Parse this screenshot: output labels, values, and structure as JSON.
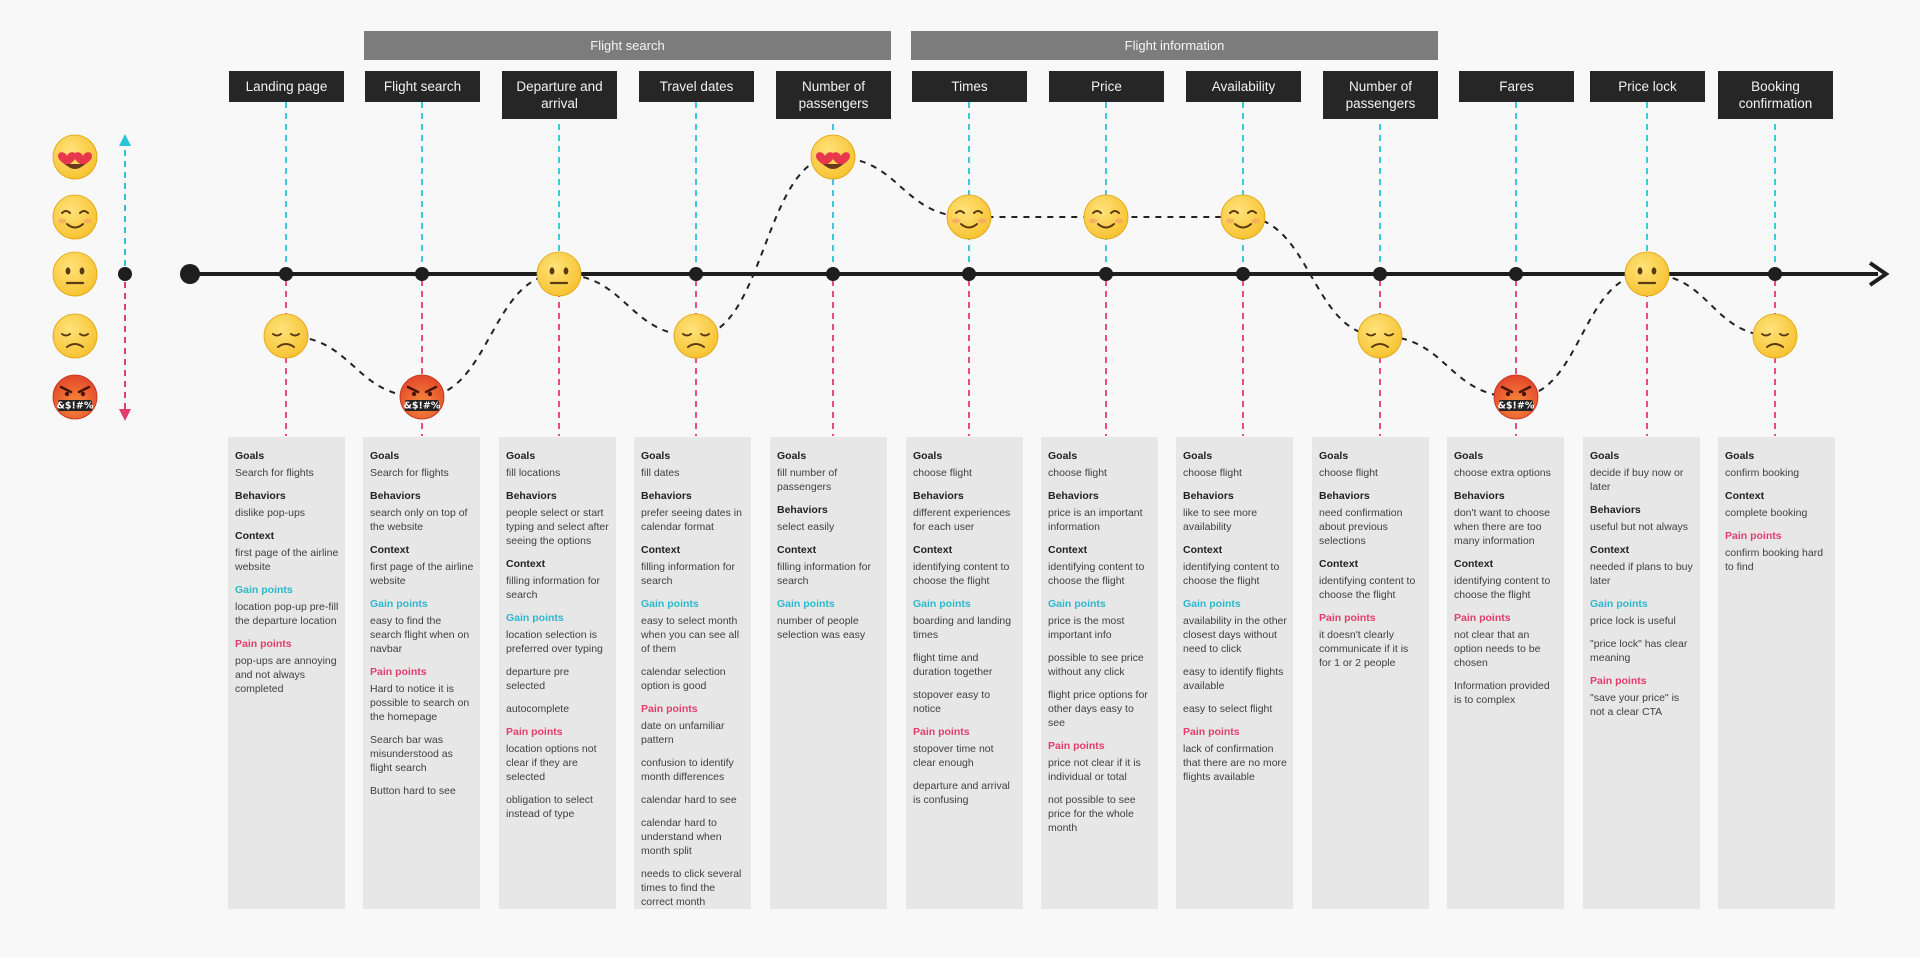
{
  "groups": [
    {
      "label": "Flight search",
      "first": 1,
      "last": 4
    },
    {
      "label": "Flight information",
      "first": 5,
      "last": 8
    }
  ],
  "emotion_scale": [
    {
      "name": "love",
      "symbol": "😍",
      "face": "love"
    },
    {
      "name": "happy",
      "symbol": "☺️",
      "face": "smile"
    },
    {
      "name": "neutral",
      "symbol": "😐",
      "face": "neutral"
    },
    {
      "name": "sad",
      "symbol": "😞",
      "face": "sad"
    },
    {
      "name": "angry",
      "symbol": "🤬",
      "face": "angry",
      "grawlix": "&$!#%"
    }
  ],
  "colors": {
    "upper_dash": "#29c3d7",
    "lower_dash": "#e23d6d",
    "axis": "#1e1e1e",
    "emoji": "#f7c12e",
    "angry": "#e2402a"
  },
  "steps": [
    {
      "title": "Landing page",
      "emotion": "sad",
      "sections": [
        {
          "type": "normal",
          "title": "Goals",
          "items": [
            "Search for flights"
          ]
        },
        {
          "type": "normal",
          "title": "Behaviors",
          "items": [
            "dislike pop-ups"
          ]
        },
        {
          "type": "normal",
          "title": "Context",
          "items": [
            "first page of the airline website"
          ]
        },
        {
          "type": "gain",
          "title": "Gain points",
          "items": [
            "location pop-up pre-fill the departure location"
          ]
        },
        {
          "type": "pain",
          "title": "Pain points",
          "items": [
            "pop-ups are annoying and not always completed"
          ]
        }
      ]
    },
    {
      "title": "Flight search",
      "emotion": "angry",
      "sections": [
        {
          "type": "normal",
          "title": "Goals",
          "items": [
            "Search for flights"
          ]
        },
        {
          "type": "normal",
          "title": "Behaviors",
          "items": [
            "search only on top of the website"
          ]
        },
        {
          "type": "normal",
          "title": "Context",
          "items": [
            "first page of the airline website"
          ]
        },
        {
          "type": "gain",
          "title": "Gain points",
          "items": [
            "easy to find the search flight when on navbar"
          ]
        },
        {
          "type": "pain",
          "title": "Pain points",
          "items": [
            "Hard to notice it is possible to search on the homepage",
            "Search bar was misunderstood as flight search",
            "Button hard to see"
          ]
        }
      ]
    },
    {
      "title": "Departure and arrival",
      "emotion": "neutral",
      "sections": [
        {
          "type": "normal",
          "title": "Goals",
          "items": [
            "fill locations"
          ]
        },
        {
          "type": "normal",
          "title": "Behaviors",
          "items": [
            "people select or start typing and select after seeing the options"
          ]
        },
        {
          "type": "normal",
          "title": "Context",
          "items": [
            "filling information for search"
          ]
        },
        {
          "type": "gain",
          "title": "Gain points",
          "items": [
            "location selection is preferred over typing",
            "departure pre selected",
            "autocomplete"
          ]
        },
        {
          "type": "pain",
          "title": "Pain points",
          "items": [
            "location options not clear if they are selected",
            "obligation to select instead of type"
          ]
        }
      ]
    },
    {
      "title": "Travel dates",
      "emotion": "sad",
      "sections": [
        {
          "type": "normal",
          "title": "Goals",
          "items": [
            "fill dates"
          ]
        },
        {
          "type": "normal",
          "title": "Behaviors",
          "items": [
            "prefer seeing dates in calendar format"
          ]
        },
        {
          "type": "normal",
          "title": "Context",
          "items": [
            "filling information for search"
          ]
        },
        {
          "type": "gain",
          "title": "Gain points",
          "items": [
            "easy to select month when you can see all of them",
            "calendar selection option is good"
          ]
        },
        {
          "type": "pain",
          "title": "Pain points",
          "items": [
            "date on unfamiliar pattern",
            "confusion to identify month differences",
            "calendar hard to see",
            "calendar hard to understand when month split",
            "needs to click several times to find the correct month"
          ]
        }
      ]
    },
    {
      "title": "Number of passengers",
      "emotion": "love",
      "sections": [
        {
          "type": "normal",
          "title": "Goals",
          "items": [
            "fill number of passengers"
          ]
        },
        {
          "type": "normal",
          "title": "Behaviors",
          "items": [
            "select easily"
          ]
        },
        {
          "type": "normal",
          "title": "Context",
          "items": [
            "filling information for search"
          ]
        },
        {
          "type": "gain",
          "title": "Gain points",
          "items": [
            "number of people selection was easy"
          ]
        }
      ]
    },
    {
      "title": "Times",
      "emotion": "happy",
      "sections": [
        {
          "type": "normal",
          "title": "Goals",
          "items": [
            "choose flight"
          ]
        },
        {
          "type": "normal",
          "title": "Behaviors",
          "items": [
            "different experiences for each user"
          ]
        },
        {
          "type": "normal",
          "title": "Context",
          "items": [
            "identifying content to choose the flight"
          ]
        },
        {
          "type": "gain",
          "title": "Gain points",
          "items": [
            "boarding and landing times",
            "flight time and duration together",
            "stopover easy to notice"
          ]
        },
        {
          "type": "pain",
          "title": "Pain points",
          "items": [
            "stopover time not clear enough",
            "departure and arrival is confusing"
          ]
        }
      ]
    },
    {
      "title": "Price",
      "emotion": "happy",
      "sections": [
        {
          "type": "normal",
          "title": "Goals",
          "items": [
            "choose flight"
          ]
        },
        {
          "type": "normal",
          "title": "Behaviors",
          "items": [
            "price is an important information"
          ]
        },
        {
          "type": "normal",
          "title": "Context",
          "items": [
            "identifying content to choose the flight"
          ]
        },
        {
          "type": "gain",
          "title": "Gain points",
          "items": [
            "price is the most important info",
            "possible to see price without any click",
            "flight price options for other days easy to see"
          ]
        },
        {
          "type": "pain",
          "title": "Pain points",
          "items": [
            "price not clear if it is individual or total",
            "not possible to see price for the whole month"
          ]
        }
      ]
    },
    {
      "title": "Availability",
      "emotion": "happy",
      "sections": [
        {
          "type": "normal",
          "title": "Goals",
          "items": [
            "choose flight"
          ]
        },
        {
          "type": "normal",
          "title": "Behaviors",
          "items": [
            "like to see more availability"
          ]
        },
        {
          "type": "normal",
          "title": "Context",
          "items": [
            "identifying content to choose the flight"
          ]
        },
        {
          "type": "gain",
          "title": "Gain points",
          "items": [
            "availability in the other closest days without need to click",
            "easy to identify flights available",
            "easy to select flight"
          ]
        },
        {
          "type": "pain",
          "title": "Pain points",
          "items": [
            "lack of confirmation that there are no more flights available"
          ]
        }
      ]
    },
    {
      "title": "Number of passengers",
      "emotion": "sad",
      "sections": [
        {
          "type": "normal",
          "title": "Goals",
          "items": [
            "choose flight"
          ]
        },
        {
          "type": "normal",
          "title": "Behaviors",
          "items": [
            "need confirmation about previous selections"
          ]
        },
        {
          "type": "normal",
          "title": "Context",
          "items": [
            "identifying content to choose the flight"
          ]
        },
        {
          "type": "pain",
          "title": "Pain points",
          "items": [
            "it doesn't clearly communicate if it is for 1 or 2 people"
          ]
        }
      ]
    },
    {
      "title": "Fares",
      "emotion": "angry",
      "sections": [
        {
          "type": "normal",
          "title": "Goals",
          "items": [
            "choose extra options"
          ]
        },
        {
          "type": "normal",
          "title": "Behaviors",
          "items": [
            "don't want to choose when there are too many information"
          ]
        },
        {
          "type": "normal",
          "title": "Context",
          "items": [
            "identifying content to choose the flight"
          ]
        },
        {
          "type": "pain",
          "title": "Pain points",
          "items": [
            "not clear that an option needs to be chosen",
            "Information provided is to complex"
          ]
        }
      ]
    },
    {
      "title": "Price lock",
      "emotion": "neutral",
      "sections": [
        {
          "type": "normal",
          "title": "Goals",
          "items": [
            "decide if buy now or later"
          ]
        },
        {
          "type": "normal",
          "title": "Behaviors",
          "items": [
            "useful but not always"
          ]
        },
        {
          "type": "normal",
          "title": "Context",
          "items": [
            "needed if plans to buy later"
          ]
        },
        {
          "type": "gain",
          "title": "Gain points",
          "items": [
            "price lock is useful",
            "\"price lock\" has clear meaning"
          ]
        },
        {
          "type": "pain",
          "title": "Pain points",
          "items": [
            "\"save your price\" is not a clear CTA"
          ]
        }
      ]
    },
    {
      "title": "Booking confirmation",
      "emotion": "sad",
      "sections": [
        {
          "type": "normal",
          "title": "Goals",
          "items": [
            "confirm booking"
          ]
        },
        {
          "type": "normal",
          "title": "Context",
          "items": [
            "complete booking"
          ]
        },
        {
          "type": "pain",
          "title": "Pain points",
          "items": [
            "confirm booking hard to find"
          ]
        }
      ]
    }
  ]
}
